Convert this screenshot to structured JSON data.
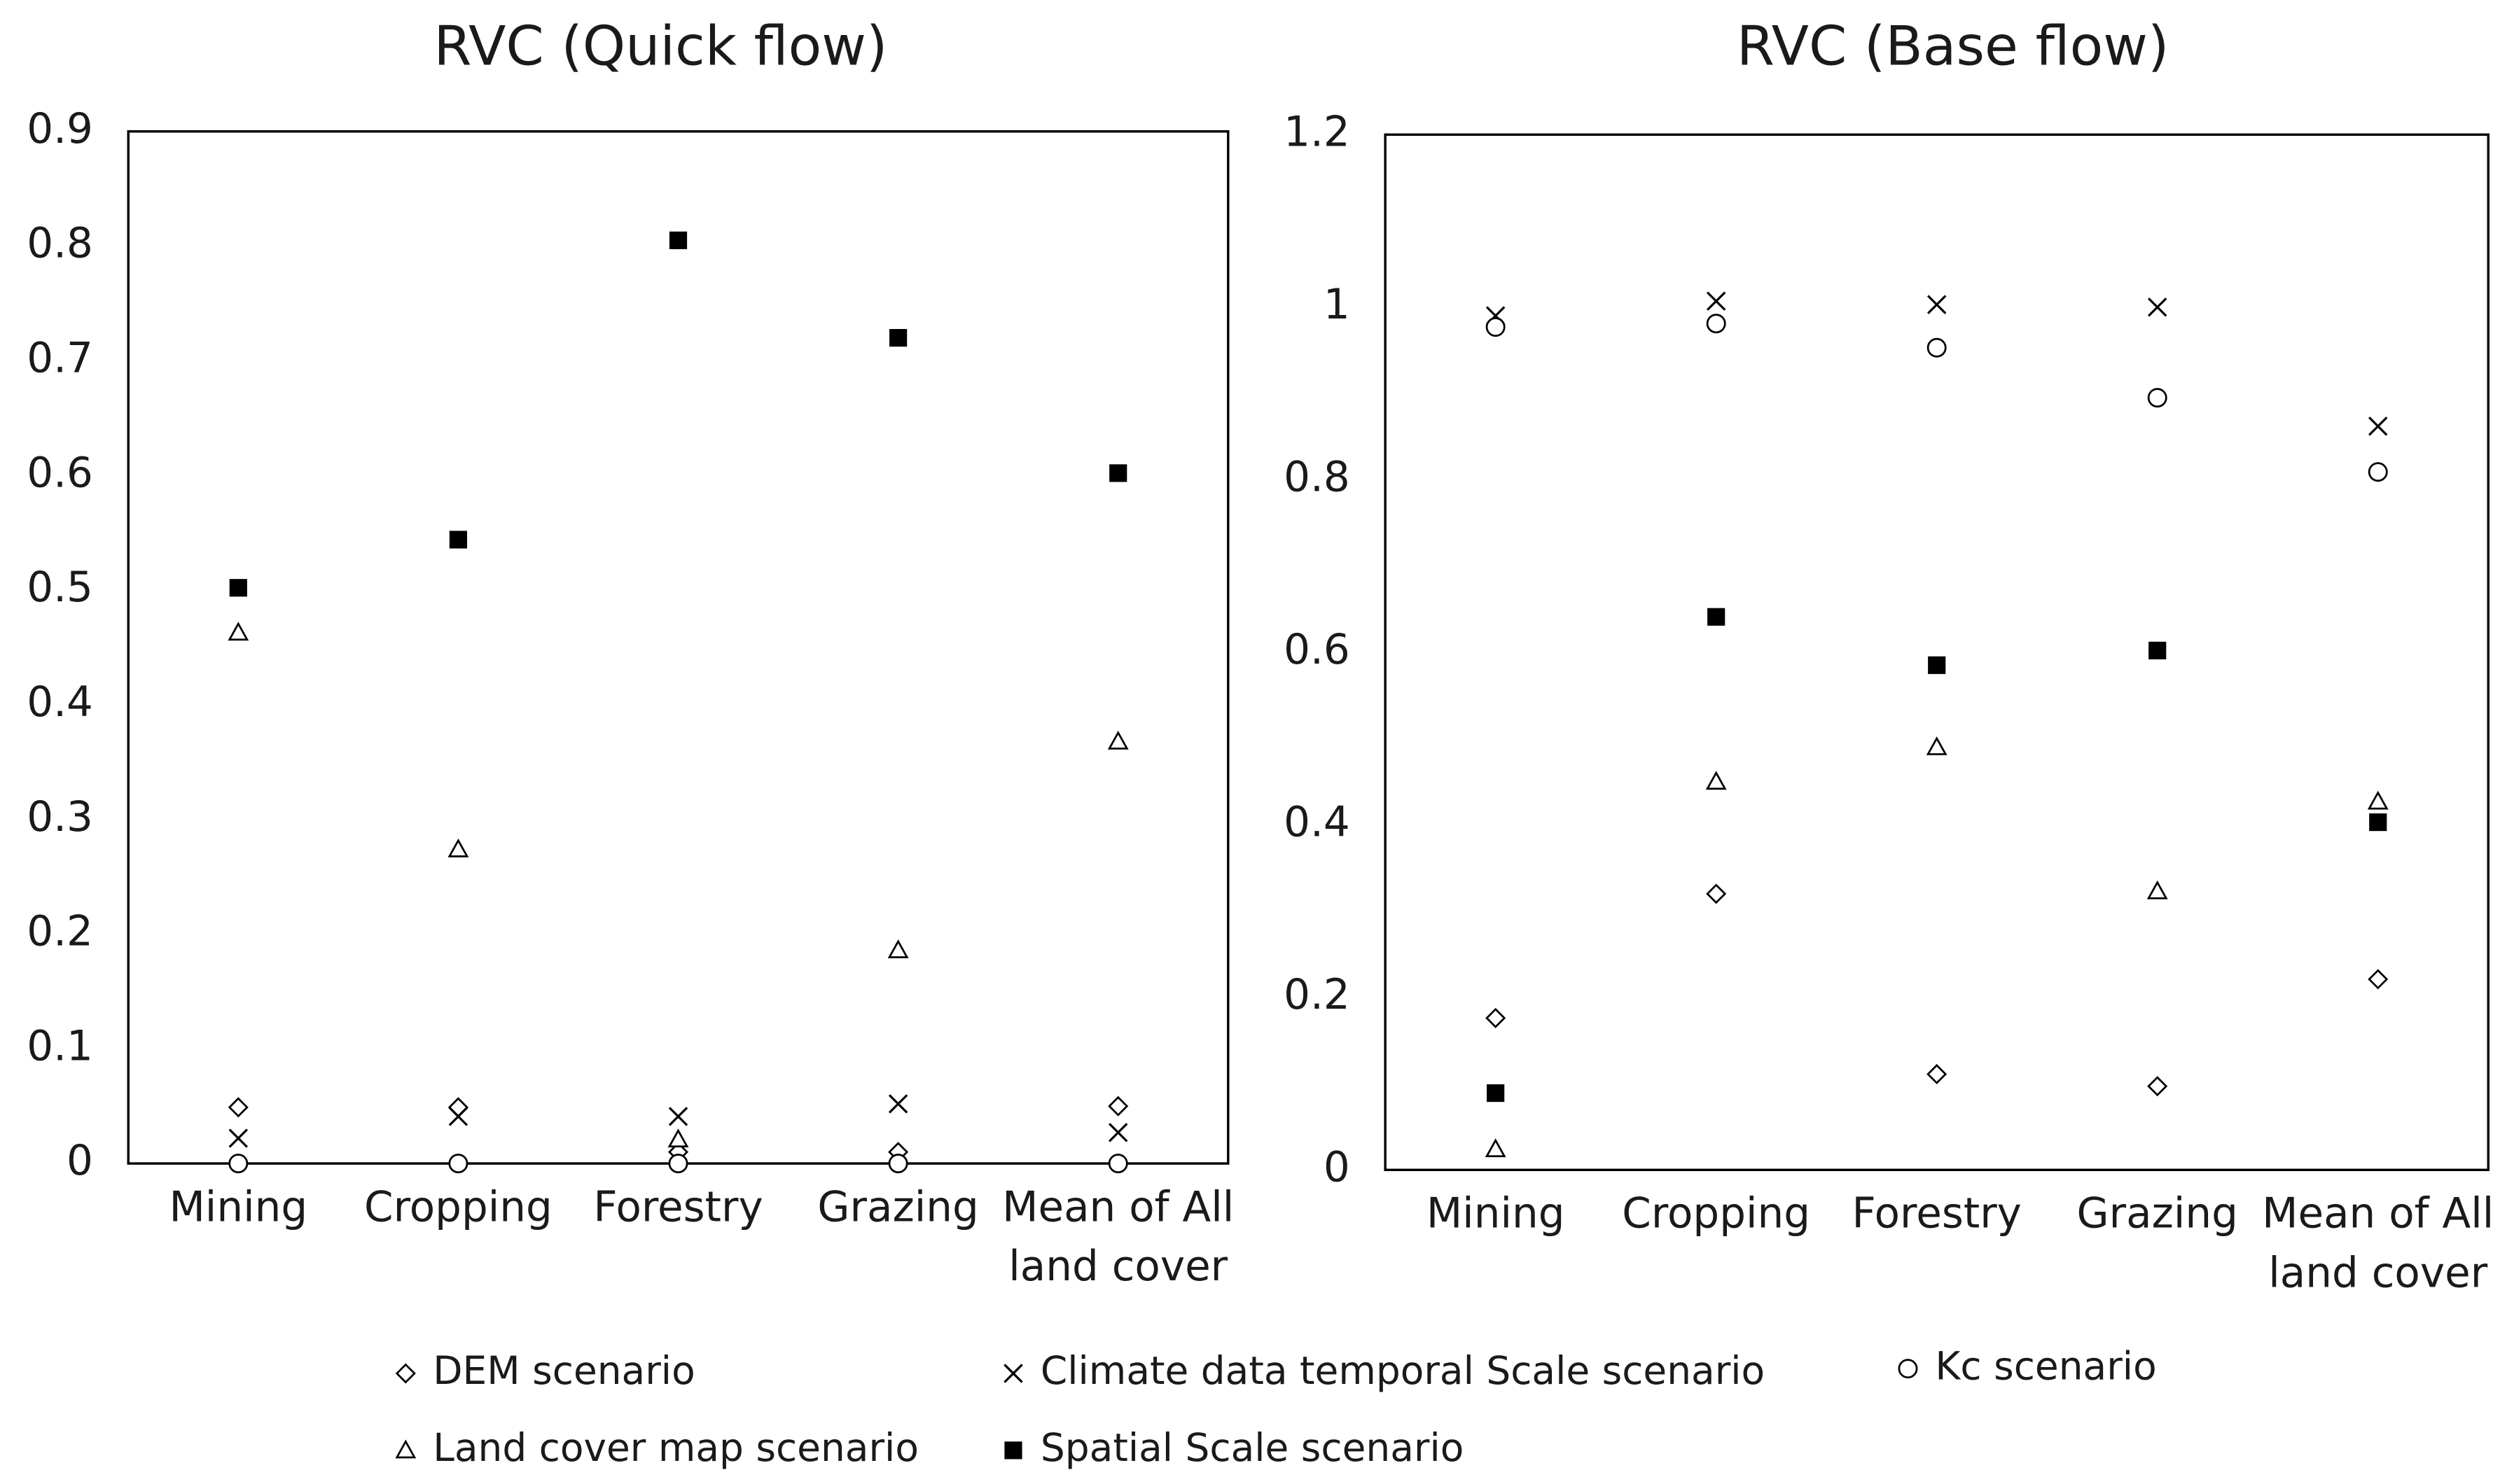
{
  "chart_data": [
    {
      "type": "scatter",
      "title": "RVC (Quick flow)",
      "categories": [
        "Mining",
        "Cropping",
        "Forestry",
        "Grazing",
        "Mean of All land cover"
      ],
      "ylim": [
        0,
        0.9
      ],
      "yticks": [
        0,
        0.1,
        0.2,
        0.3,
        0.4,
        0.5,
        0.6,
        0.7,
        0.8,
        0.9
      ],
      "series": [
        {
          "name": "DEM scenario",
          "color": "#000000",
          "marker": "diamond",
          "values": [
            0.049,
            0.049,
            0.01,
            0.01,
            0.05
          ]
        },
        {
          "name": "Climate data temporal Scale scenario",
          "color": "#000000",
          "marker": "x",
          "values": [
            0.022,
            0.041,
            0.041,
            0.052,
            0.027
          ]
        },
        {
          "name": "Kc scenario",
          "color": "#000000",
          "marker": "circle",
          "values": [
            0,
            0,
            0,
            0,
            0
          ]
        },
        {
          "name": "Land cover map scenario",
          "color": "#000000",
          "marker": "triangle",
          "values": [
            0.463,
            0.274,
            0.021,
            0.186,
            0.368
          ]
        },
        {
          "name": "Spatial Scale scenario",
          "color": "#000000",
          "marker": "square",
          "values": [
            0.502,
            0.544,
            0.805,
            0.72,
            0.602
          ]
        }
      ]
    },
    {
      "type": "scatter",
      "title": "RVC (Base flow)",
      "categories": [
        "Mining",
        "Cropping",
        "Forestry",
        "Grazing",
        "Mean of All land cover"
      ],
      "ylim": [
        0,
        1.2
      ],
      "yticks": [
        0,
        0.2,
        0.4,
        0.6,
        0.8,
        1,
        1.2
      ],
      "series": [
        {
          "name": "DEM scenario",
          "color": "#000000",
          "marker": "diamond",
          "values": [
            0.176,
            0.32,
            0.111,
            0.097,
            0.221
          ]
        },
        {
          "name": "Climate data temporal Scale scenario",
          "color": "#000000",
          "marker": "x",
          "values": [
            0.99,
            1.007,
            1.003,
            1.0,
            0.862
          ]
        },
        {
          "name": "Kc scenario",
          "color": "#000000",
          "marker": "circle",
          "values": [
            0.977,
            0.981,
            0.953,
            0.895,
            0.809
          ]
        },
        {
          "name": "Land cover map scenario",
          "color": "#000000",
          "marker": "triangle",
          "values": [
            0.024,
            0.45,
            0.49,
            0.323,
            0.427
          ]
        },
        {
          "name": "Spatial Scale scenario",
          "color": "#000000",
          "marker": "square",
          "values": [
            0.089,
            0.641,
            0.585,
            0.602,
            0.403
          ]
        }
      ]
    }
  ]
}
